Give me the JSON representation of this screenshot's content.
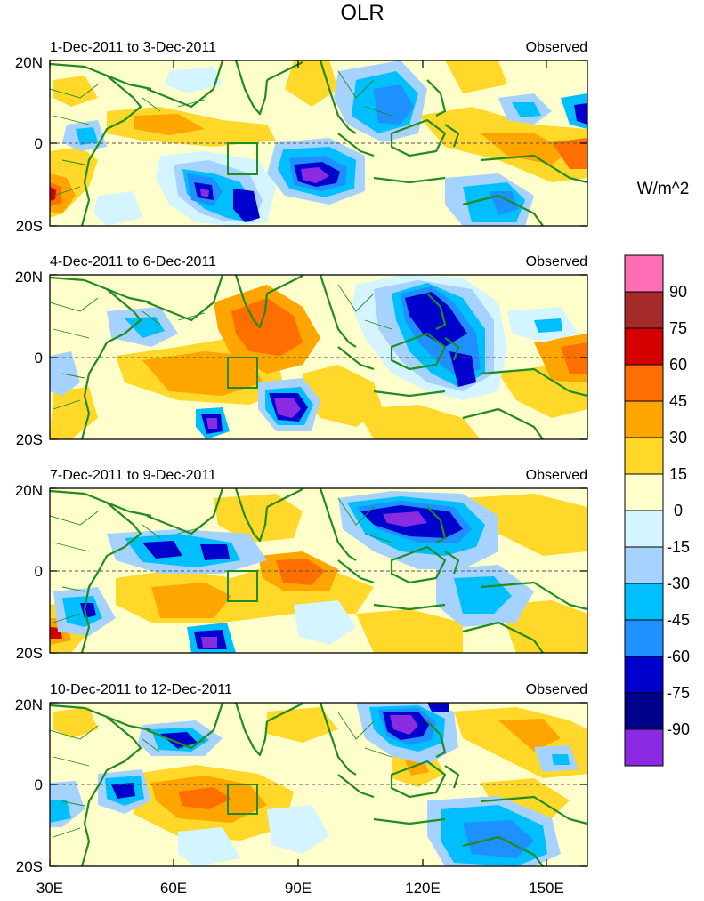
{
  "title": "OLR",
  "units": "W/m^2",
  "legend_label": "Observed",
  "lat_labels": [
    "20N",
    "0",
    "20S"
  ],
  "lon_labels": [
    "30E",
    "60E",
    "90E",
    "120E",
    "150E"
  ],
  "panels": [
    {
      "period": "1-Dec-2011 to 3-Dec-2011",
      "label": "Observed"
    },
    {
      "period": "4-Dec-2011 to 6-Dec-2011",
      "label": "Observed"
    },
    {
      "period": "7-Dec-2011 to 9-Dec-2011",
      "label": "Observed"
    },
    {
      "period": "10-Dec-2011 to 12-Dec-2011",
      "label": "Observed"
    }
  ],
  "colorbar": {
    "labels": [
      "90",
      "75",
      "60",
      "45",
      "30",
      "15",
      "0",
      "-15",
      "-30",
      "-45",
      "-60",
      "-75",
      "-90"
    ],
    "colors": [
      "#ff6eb4",
      "#a52a2a",
      "#d40000",
      "#ff6e00",
      "#ffa500",
      "#ffd82a",
      "#ffffcc",
      "#d4f4ff",
      "#a6d2ff",
      "#00bfff",
      "#1e90ff",
      "#0000cd",
      "#00008b",
      "#8a2be2"
    ]
  },
  "colors": {
    "coast": "#228b22",
    "equator": "#555555",
    "box": "#228b22"
  }
}
